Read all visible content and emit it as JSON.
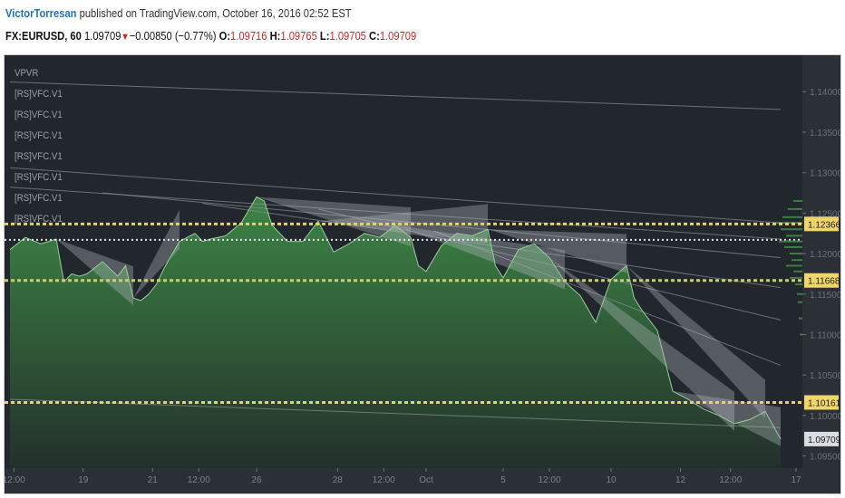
{
  "header": {
    "author": "VictorTorresan",
    "published_text": "published on TradingView.com, October 16, 2016 02:52 EST",
    "symbol": "FX:EURUSD, 60",
    "last": "1.09709",
    "change_arrow": "▼",
    "change": "−0.00850 (−0.77%)",
    "open_label": "O:",
    "open": "1.09716",
    "high_label": "H:",
    "high": "1.09765",
    "low_label": "L:",
    "low": "1.09705",
    "close_label": "C:",
    "close": "1.09709"
  },
  "indicators": [
    "VPVR",
    "[RS]VFC.V1",
    "[RS]VFC.V1",
    "[RS]VFC.V1",
    "[RS]VFC.V1",
    "[RS]VFC.V1",
    "[RS]VFC.V1",
    "[RS]VFC.V1"
  ],
  "price_axis": {
    "ticks": [
      "1.14000",
      "1.13500",
      "1.13000",
      "1.12500",
      "1.12000",
      "1.11500",
      "1.11000",
      "1.10500",
      "1.10000",
      "1.09500"
    ],
    "tick_values": [
      1.14,
      1.135,
      1.13,
      1.125,
      1.12,
      1.115,
      1.11,
      1.105,
      1.1,
      1.095
    ],
    "range": [
      1.0935,
      1.1445
    ]
  },
  "time_axis": {
    "ticks": [
      "12:00",
      "19",
      "21",
      "12:00",
      "26",
      "28",
      "12:00",
      "Oct",
      "5",
      "12:00",
      "10",
      "12",
      "12:00",
      "17"
    ],
    "tick_positions": [
      0.5,
      9.5,
      18.5,
      24.5,
      32,
      42.5,
      48.5,
      54,
      64,
      70,
      78,
      87,
      93.5,
      102
    ]
  },
  "levels": [
    {
      "label": "1.12366",
      "value": 1.12366,
      "color": "#e8d06a"
    },
    {
      "label": "1.11668",
      "value": 1.11668,
      "color": "#c9cf6a"
    },
    {
      "label": "1.10161",
      "value": 1.10161,
      "color": "#e8d06a"
    }
  ],
  "poc_level": 1.1217,
  "last_price": {
    "label": "1.09709",
    "value": 1.09709
  },
  "colors": {
    "chart_bg": "#22262d",
    "price_up": "#3e8a47",
    "price_down": "#b8bcc2",
    "level_line": "#e6d36e",
    "last_label_bg": "#d9dde2"
  },
  "chart_data": {
    "type": "area",
    "symbol": "FX:EURUSD",
    "interval": "60",
    "x": [
      0,
      2,
      4,
      6,
      7,
      8,
      9,
      10,
      12,
      14,
      15,
      16,
      17,
      18,
      19,
      20,
      22,
      24,
      25,
      26,
      28,
      30,
      32,
      33,
      34,
      36,
      38,
      40,
      42,
      44,
      46,
      48,
      50,
      52,
      53,
      54,
      56,
      58,
      60,
      62,
      63,
      64,
      66,
      68,
      70,
      72,
      74,
      76,
      78,
      80,
      81,
      82,
      84,
      86,
      88,
      90,
      92,
      94,
      96,
      98,
      100
    ],
    "close": [
      1.1205,
      1.122,
      1.1212,
      1.1218,
      1.1165,
      1.1175,
      1.1172,
      1.1175,
      1.119,
      1.1172,
      1.1185,
      1.1145,
      1.1142,
      1.115,
      1.1162,
      1.1182,
      1.1215,
      1.1225,
      1.1215,
      1.1218,
      1.1222,
      1.1238,
      1.127,
      1.1265,
      1.1235,
      1.1215,
      1.1215,
      1.124,
      1.1202,
      1.1212,
      1.1225,
      1.122,
      1.1235,
      1.122,
      1.1185,
      1.1178,
      1.121,
      1.1225,
      1.1222,
      1.123,
      1.1185,
      1.117,
      1.1205,
      1.1212,
      1.1195,
      1.1165,
      1.1148,
      1.1115,
      1.1168,
      1.1185,
      1.1145,
      1.113,
      1.1105,
      1.103,
      1.102,
      1.1008,
      1.1,
      1.099,
      1.0995,
      1.1005,
      1.0971
    ]
  }
}
